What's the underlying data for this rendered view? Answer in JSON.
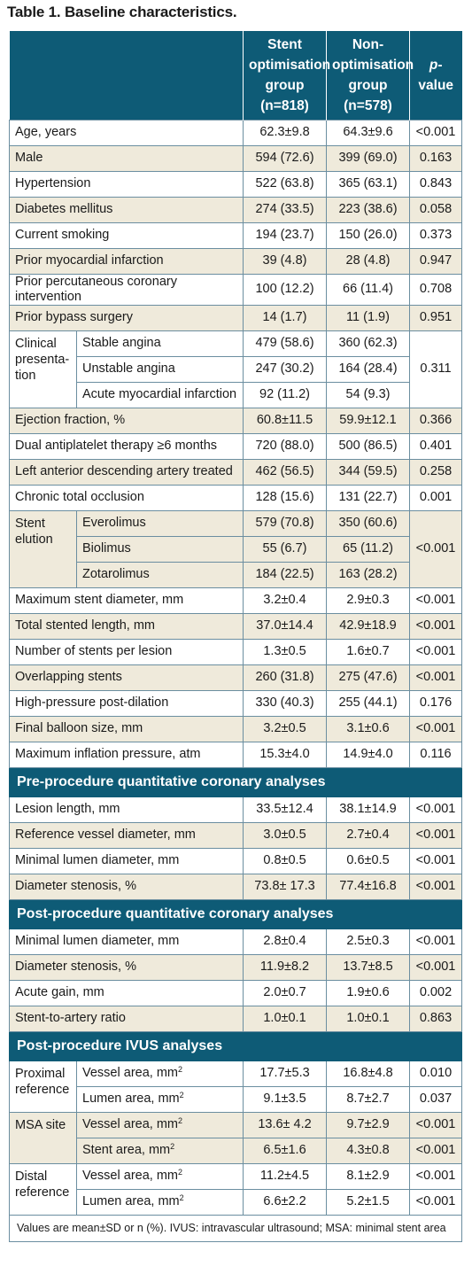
{
  "title": "Table 1. Baseline characteristics.",
  "header": {
    "col_stent": [
      "Stent",
      "optimisation",
      "group",
      "(n=818)"
    ],
    "col_non": [
      "Non-",
      "optimisation",
      "group",
      "(n=578)"
    ],
    "col_p_italic": "p",
    "col_p_rest": "-value"
  },
  "rows_a": [
    {
      "label": "Age, years",
      "stent": "62.3±9.8",
      "non": "64.3±9.6",
      "p": "<0.001"
    },
    {
      "label": "Male",
      "stent": "594 (72.6)",
      "non": "399 (69.0)",
      "p": "0.163"
    },
    {
      "label": "Hypertension",
      "stent": "522 (63.8)",
      "non": "365 (63.1)",
      "p": "0.843"
    },
    {
      "label": "Diabetes mellitus",
      "stent": "274 (33.5)",
      "non": "223 (38.6)",
      "p": "0.058"
    },
    {
      "label": "Current smoking",
      "stent": "194 (23.7)",
      "non": "150 (26.0)",
      "p": "0.373"
    },
    {
      "label": "Prior myocardial infarction",
      "stent": "39 (4.8)",
      "non": "28 (4.8)",
      "p": "0.947"
    },
    {
      "label": "Prior percutaneous coronary intervention",
      "stent": "100 (12.2)",
      "non": "66 (11.4)",
      "p": "0.708"
    },
    {
      "label": "Prior bypass surgery",
      "stent": "14 (1.7)",
      "non": "11 (1.9)",
      "p": "0.951"
    }
  ],
  "clinical": {
    "group": [
      "Clinical",
      "presenta-",
      "tion"
    ],
    "p": "0.311",
    "rows": [
      {
        "label": "Stable angina",
        "stent": "479 (58.6)",
        "non": "360 (62.3)"
      },
      {
        "label": "Unstable angina",
        "stent": "247 (30.2)",
        "non": "164 (28.4)"
      },
      {
        "label": "Acute myocardial infarction",
        "stent": "92 (11.2)",
        "non": "54 (9.3)"
      }
    ]
  },
  "rows_b": [
    {
      "label": "Ejection fraction, %",
      "stent": "60.8±11.5",
      "non": "59.9±12.1",
      "p": "0.366"
    },
    {
      "label": "Dual antiplatelet therapy ≥6 months",
      "stent": "720 (88.0)",
      "non": "500 (86.5)",
      "p": "0.401"
    },
    {
      "label": "Left anterior descending artery treated",
      "stent": "462 (56.5)",
      "non": "344 (59.5)",
      "p": "0.258"
    },
    {
      "label": "Chronic total occlusion",
      "stent": "128 (15.6)",
      "non": "131 (22.7)",
      "p": "0.001"
    }
  ],
  "elution": {
    "group": [
      "Stent",
      "elution"
    ],
    "p": "<0.001",
    "rows": [
      {
        "label": "Everolimus",
        "stent": "579 (70.8)",
        "non": "350 (60.6)"
      },
      {
        "label": "Biolimus",
        "stent": "55 (6.7)",
        "non": "65 (11.2)"
      },
      {
        "label": "Zotarolimus",
        "stent": "184 (22.5)",
        "non": "163 (28.2)"
      }
    ]
  },
  "rows_c": [
    {
      "label": "Maximum stent diameter, mm",
      "stent": "3.2±0.4",
      "non": "2.9±0.3",
      "p": "<0.001"
    },
    {
      "label": "Total stented length, mm",
      "stent": "37.0±14.4",
      "non": "42.9±18.9",
      "p": "<0.001"
    },
    {
      "label": "Number of stents per lesion",
      "stent": "1.3±0.5",
      "non": "1.6±0.7",
      "p": "<0.001"
    },
    {
      "label": "Overlapping stents",
      "stent": "260 (31.8)",
      "non": "275 (47.6)",
      "p": "<0.001"
    },
    {
      "label": "High-pressure post-dilation",
      "stent": "330 (40.3)",
      "non": "255 (44.1)",
      "p": "0.176"
    },
    {
      "label": "Final balloon size, mm",
      "stent": "3.2±0.5",
      "non": "3.1±0.6",
      "p": "<0.001"
    },
    {
      "label": "Maximum inflation pressure, atm",
      "stent": "15.3±4.0",
      "non": "14.9±4.0",
      "p": "0.116"
    }
  ],
  "section_pre": "Pre-procedure quantitative coronary analyses",
  "rows_pre": [
    {
      "label": "Lesion length, mm",
      "stent": "33.5±12.4",
      "non": "38.1±14.9",
      "p": "<0.001"
    },
    {
      "label": "Reference vessel diameter, mm",
      "stent": "3.0±0.5",
      "non": "2.7±0.4",
      "p": "<0.001"
    },
    {
      "label": "Minimal lumen diameter, mm",
      "stent": "0.8±0.5",
      "non": "0.6±0.5",
      "p": "<0.001"
    },
    {
      "label": "Diameter stenosis, %",
      "stent": "73.8± 17.3",
      "non": "77.4±16.8",
      "p": "<0.001"
    }
  ],
  "section_post": "Post-procedure quantitative coronary analyses",
  "rows_post": [
    {
      "label": "Minimal lumen diameter, mm",
      "stent": "2.8±0.4",
      "non": "2.5±0.3",
      "p": "<0.001"
    },
    {
      "label": "Diameter stenosis, %",
      "stent": "11.9±8.2",
      "non": "13.7±8.5",
      "p": "<0.001"
    },
    {
      "label": "Acute gain, mm",
      "stent": "2.0±0.7",
      "non": "1.9±0.6",
      "p": "0.002"
    },
    {
      "label": "Stent-to-artery ratio",
      "stent": "1.0±0.1",
      "non": "1.0±0.1",
      "p": "0.863"
    }
  ],
  "section_ivus": "Post-procedure IVUS analyses",
  "ivus": [
    {
      "group": [
        "Proximal",
        "reference"
      ],
      "rows": [
        {
          "label": "Vessel area, mm",
          "sup": "2",
          "stent": "17.7±5.3",
          "non": "16.8±4.8",
          "p": "0.010"
        },
        {
          "label": "Lumen area, mm",
          "sup": "2",
          "stent": "9.1±3.5",
          "non": "8.7±2.7",
          "p": "0.037"
        }
      ]
    },
    {
      "group": [
        "MSA site"
      ],
      "rows": [
        {
          "label": "Vessel area, mm",
          "sup": "2",
          "stent": "13.6± 4.2",
          "non": "9.7±2.9",
          "p": "<0.001"
        },
        {
          "label": "Stent area, mm",
          "sup": "2",
          "stent": "6.5±1.6",
          "non": "4.3±0.8",
          "p": "<0.001"
        }
      ]
    },
    {
      "group": [
        "Distal",
        "reference"
      ],
      "rows": [
        {
          "label": "Vessel area, mm",
          "sup": "2",
          "stent": "11.2±4.5",
          "non": "8.1±2.9",
          "p": "<0.001"
        },
        {
          "label": "Lumen area, mm",
          "sup": "2",
          "stent": "6.6±2.2",
          "non": "5.2±1.5",
          "p": "<0.001"
        }
      ]
    }
  ],
  "footnote": "Values are mean±SD or n (%).  IVUS: intravascular ultrasound; MSA: minimal stent area"
}
